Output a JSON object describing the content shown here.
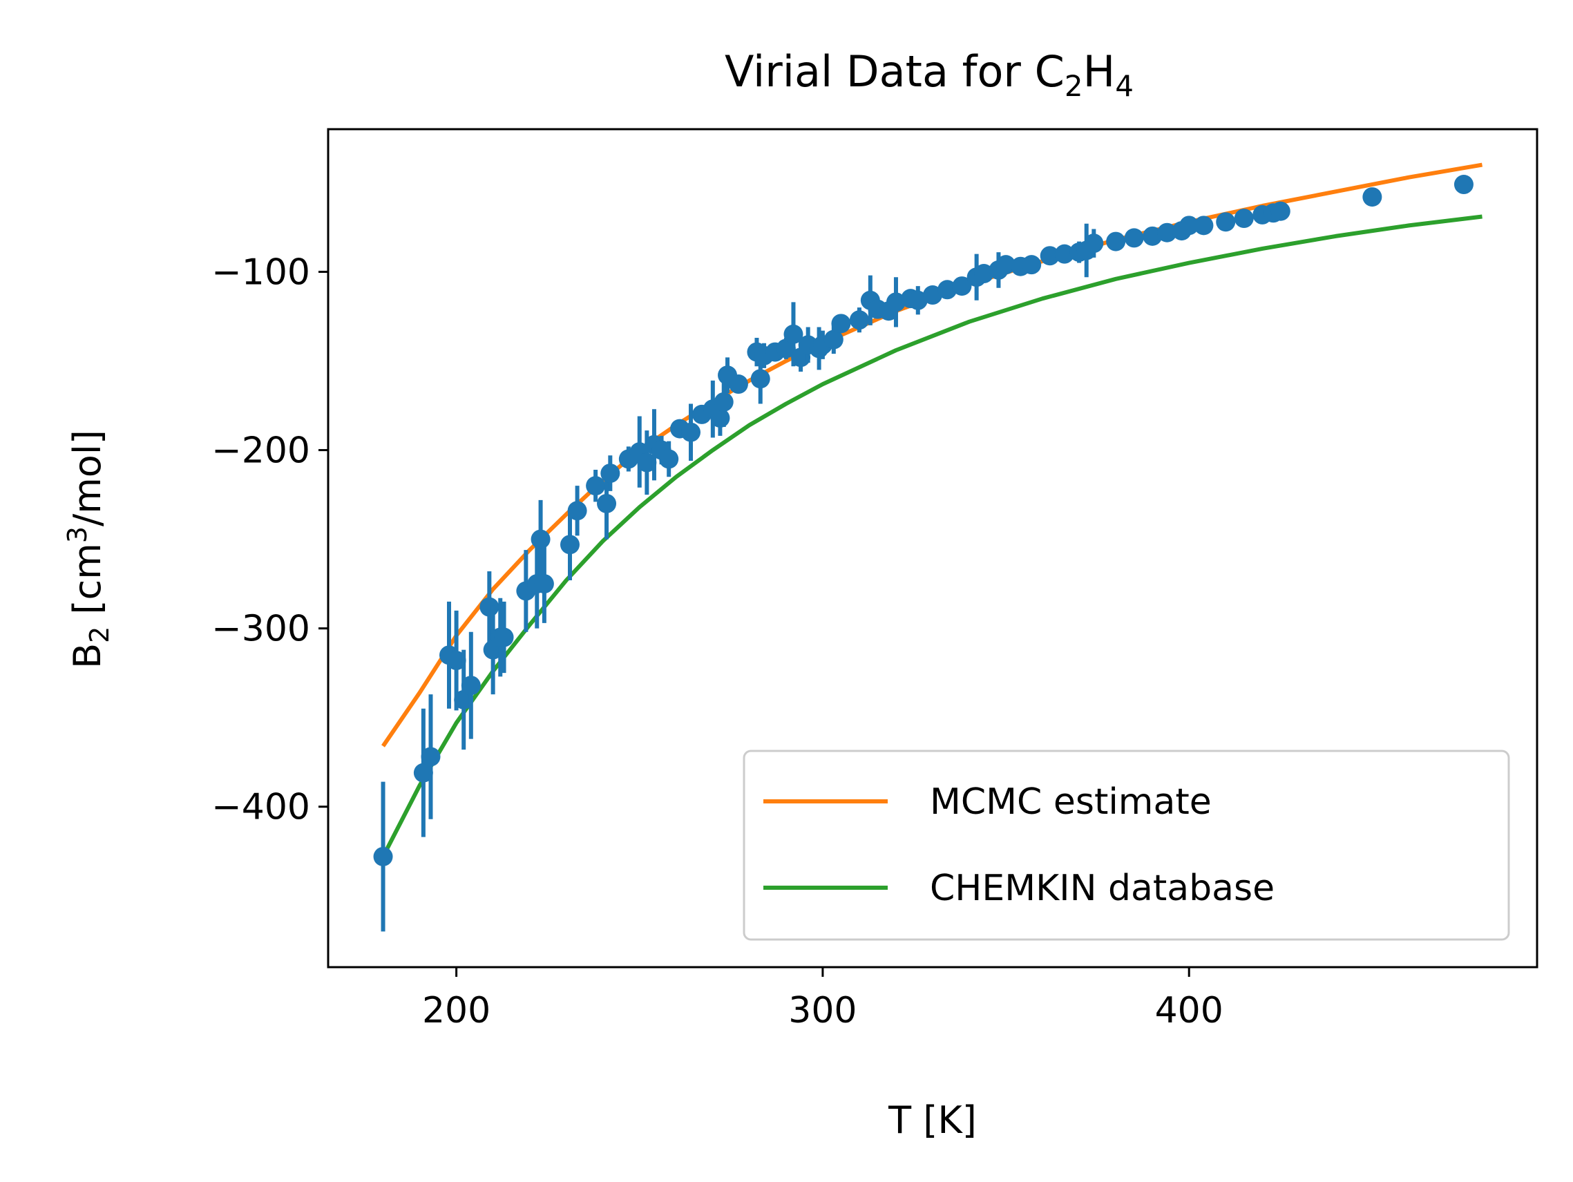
{
  "chart_data": {
    "type": "scatter",
    "title": {
      "prefix": "Virial Data for C",
      "sub1": "2",
      "mid": "H",
      "sub2": "4"
    },
    "xlabel": "T [K]",
    "ylabel": {
      "base": "B",
      "sub": "2",
      "unit_open": " [cm",
      "sup": "3",
      "unit_close": "/mol]"
    },
    "xlim": [
      165,
      495
    ],
    "ylim": [
      -490,
      -20
    ],
    "x_ticks": [
      200,
      300,
      400
    ],
    "x_tick_labels": [
      "200",
      "300",
      "400"
    ],
    "y_ticks": [
      -400,
      -300,
      -200,
      -100
    ],
    "y_tick_labels": [
      "−400",
      "−300",
      "−200",
      "−100"
    ],
    "grid": false,
    "legend": {
      "position": "lower-right"
    },
    "colors": {
      "points": "#1f77b4",
      "mcmc": "#ff7f0e",
      "chemkin": "#2ca02c"
    },
    "series": [
      {
        "name": "MCMC estimate",
        "kind": "line",
        "x": [
          180,
          190,
          200,
          210,
          220,
          230,
          240,
          250,
          260,
          270,
          280,
          290,
          300,
          320,
          340,
          360,
          380,
          400,
          420,
          440,
          460,
          480
        ],
        "y": [
          -366,
          -336,
          -304,
          -278,
          -256,
          -236,
          -217,
          -200,
          -186,
          -173,
          -161,
          -150,
          -140,
          -122,
          -107,
          -94,
          -82,
          -72,
          -63,
          -55,
          -47,
          -40
        ]
      },
      {
        "name": "CHEMKIN database",
        "kind": "line",
        "x": [
          180,
          190,
          200,
          210,
          220,
          230,
          240,
          250,
          260,
          270,
          280,
          290,
          300,
          320,
          340,
          360,
          380,
          400,
          420,
          440,
          460,
          480
        ],
        "y": [
          -428,
          -388,
          -353,
          -324,
          -298,
          -273,
          -251,
          -232,
          -215,
          -200,
          -186,
          -174,
          -163,
          -144,
          -128,
          -115,
          -104,
          -95,
          -87,
          -80,
          -74,
          -69
        ]
      },
      {
        "name": "",
        "kind": "errorbar",
        "x": [
          180,
          191,
          193,
          198,
          200,
          202,
          204,
          209,
          210,
          212,
          213,
          219,
          222,
          223,
          224,
          231,
          233,
          238,
          241,
          242,
          247,
          250,
          252,
          254,
          256,
          258,
          261,
          264,
          267,
          270,
          272,
          273,
          274,
          277,
          282,
          283,
          284,
          287,
          290,
          292,
          294,
          296,
          299,
          300,
          303,
          305,
          310,
          313,
          315,
          318,
          320,
          324,
          326,
          330,
          334,
          338,
          342,
          344,
          348,
          350,
          354,
          357,
          362,
          366,
          370,
          372,
          374,
          380,
          385,
          390,
          394,
          398,
          400,
          404,
          410,
          415,
          420,
          423,
          425,
          450,
          475
        ],
        "y": [
          -428,
          -381,
          -372,
          -315,
          -318,
          -340,
          -332,
          -288,
          -312,
          -305,
          -305,
          -279,
          -275,
          -250,
          -275,
          -253,
          -234,
          -220,
          -230,
          -213,
          -205,
          -201,
          -207,
          -197,
          -200,
          -205,
          -188,
          -190,
          -180,
          -177,
          -182,
          -173,
          -158,
          -163,
          -145,
          -160,
          -147,
          -145,
          -143,
          -135,
          -148,
          -141,
          -143,
          -141,
          -138,
          -129,
          -127,
          -116,
          -121,
          -122,
          -117,
          -115,
          -116,
          -113,
          -110,
          -108,
          -103,
          -101,
          -99,
          -96,
          -97,
          -96,
          -91,
          -90,
          -89,
          -88,
          -84,
          -83,
          -81,
          -80,
          -78,
          -77,
          -74,
          -74,
          -72,
          -70,
          -68,
          -67,
          -66,
          -58,
          -51
        ],
        "err": [
          42,
          36,
          35,
          30,
          28,
          28,
          30,
          20,
          25,
          22,
          20,
          23,
          25,
          22,
          22,
          20,
          14,
          9,
          20,
          10,
          7,
          20,
          18,
          20,
          8,
          10,
          4,
          16,
          5,
          16,
          10,
          14,
          10,
          5,
          8,
          14,
          7,
          4,
          6,
          18,
          8,
          10,
          12,
          8,
          8,
          5,
          7,
          14,
          5,
          4,
          14,
          3,
          8,
          3,
          3,
          3,
          13,
          3,
          10,
          4,
          3,
          3,
          3,
          3,
          6,
          15,
          8,
          3,
          3,
          3,
          3,
          3,
          3,
          3,
          3,
          3,
          3,
          3,
          3,
          3,
          3
        ]
      }
    ]
  }
}
